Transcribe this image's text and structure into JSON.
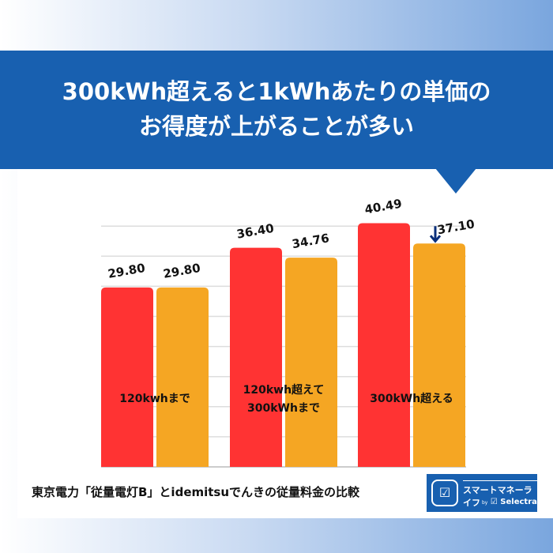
{
  "header": {
    "title_line1": "300kWh超えると1kWhあたりの単価の",
    "title_line2": "お得度が上がることが多い"
  },
  "footer": {
    "caption": "東京電力「従量電灯B」とidemitsuでんきの従量料金の比較"
  },
  "logo": {
    "name": "スマートマネーライフ",
    "by": "by",
    "brand": "Selectra"
  },
  "chart_data": {
    "type": "bar",
    "categories": [
      "120kwhまで",
      "120kwh超えて\n300kWhまで",
      "300kWh超える"
    ],
    "series": [
      {
        "values": [
          29.8,
          36.4,
          40.49
        ],
        "color": "#ff3333"
      },
      {
        "values": [
          29.8,
          34.76,
          37.1
        ],
        "color": "#f5a623"
      }
    ],
    "ylim": [
      0,
      40
    ],
    "grid": true,
    "annotations": [
      {
        "type": "down-arrow",
        "category": "300kWh超える",
        "series": 1,
        "color": "#0b2f7a"
      }
    ]
  }
}
